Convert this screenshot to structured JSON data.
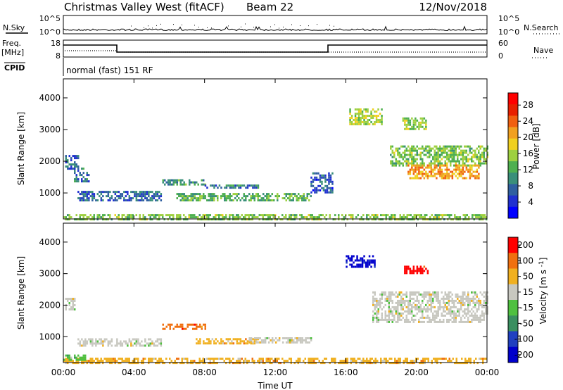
{
  "header": {
    "station": "Christmas Valley West (fitACF)",
    "beam": "Beam 22",
    "date": "12/Nov/2018"
  },
  "strips": {
    "nsky": {
      "label": "N.Sky",
      "ticks": [
        "10^5",
        "10^0"
      ]
    },
    "nsearch": {
      "label": "N.Search",
      "ticks": [
        "10^5",
        "10^0"
      ]
    },
    "freq": {
      "label_top": "Freq.",
      "label_unit": "[MHz]",
      "ticks": [
        "18",
        "8"
      ]
    },
    "nave": {
      "label": "Nave",
      "ticks": [
        "60",
        "0"
      ]
    },
    "cpid": {
      "label": "CPID",
      "value": "normal (fast) 151 RF"
    }
  },
  "chart_data": [
    {
      "type": "heatmap",
      "panel": "power",
      "ylabel": "Slant Range [km]",
      "yticks": [
        1000,
        2000,
        3000,
        4000
      ],
      "ylim": [
        180,
        4600
      ],
      "xlim": [
        0,
        24
      ],
      "colorbar": {
        "label": "Power [dB]",
        "ticks": [
          4,
          8,
          12,
          16,
          20,
          24,
          28
        ],
        "range": [
          0,
          31
        ],
        "colors": [
          "#0000ff",
          "#2030d0",
          "#2f5fa0",
          "#3a8f7a",
          "#4fb050",
          "#9ed040",
          "#f0d020",
          "#f0a020",
          "#f06010",
          "#e82000",
          "#ff0000"
        ]
      },
      "regions": [
        {
          "t": [
            0.0,
            24.0
          ],
          "r": [
            200,
            350
          ],
          "level": 14
        },
        {
          "t": [
            0.1,
            0.8
          ],
          "r": [
            1800,
            2200
          ],
          "level": 6
        },
        {
          "t": [
            0.6,
            1.4
          ],
          "r": [
            1400,
            1800
          ],
          "level": 7
        },
        {
          "t": [
            0.8,
            5.5
          ],
          "r": [
            800,
            1100
          ],
          "level": 6
        },
        {
          "t": [
            5.6,
            8.0
          ],
          "r": [
            1300,
            1450
          ],
          "level": 10
        },
        {
          "t": [
            6.4,
            14.0
          ],
          "r": [
            800,
            1000
          ],
          "level": 12
        },
        {
          "t": [
            8.0,
            11.0
          ],
          "r": [
            1200,
            1300
          ],
          "level": 8
        },
        {
          "t": [
            14.0,
            15.2
          ],
          "r": [
            1050,
            1700
          ],
          "level": 5
        },
        {
          "t": [
            16.2,
            18.0
          ],
          "r": [
            3200,
            3700
          ],
          "level": 16
        },
        {
          "t": [
            19.2,
            20.5
          ],
          "r": [
            3050,
            3400
          ],
          "level": 15
        },
        {
          "t": [
            18.5,
            24.0
          ],
          "r": [
            1900,
            2500
          ],
          "level": 14
        },
        {
          "t": [
            19.5,
            23.5
          ],
          "r": [
            1500,
            1950
          ],
          "level": 22
        }
      ]
    },
    {
      "type": "heatmap",
      "panel": "velocity",
      "ylabel": "Slant Range [km]",
      "yticks": [
        1000,
        2000,
        3000,
        4000
      ],
      "ylim": [
        180,
        4600
      ],
      "xlim": [
        0,
        24
      ],
      "xticks": [
        "00:00",
        "04:00",
        "08:00",
        "12:00",
        "16:00",
        "20:00",
        "00:00"
      ],
      "xlabel": "Time UT",
      "colorbar": {
        "label": "Velocity [m s^-1]",
        "ticks": [
          "200",
          "100",
          "50",
          "15",
          "-15",
          "-50",
          "-100",
          "-200"
        ],
        "colors": [
          "#0000cc",
          "#2040c0",
          "#3a8f60",
          "#4fc040",
          "#c8c8c0",
          "#f0b020",
          "#f07010",
          "#ff0000"
        ]
      },
      "regions": [
        {
          "t": [
            0.0,
            24.0
          ],
          "r": [
            200,
            380
          ],
          "level": 5
        },
        {
          "t": [
            0.0,
            1.2
          ],
          "r": [
            300,
            500
          ],
          "level": 3
        },
        {
          "t": [
            0.1,
            0.6
          ],
          "r": [
            1900,
            2250
          ],
          "level": 4
        },
        {
          "t": [
            0.8,
            5.5
          ],
          "r": [
            750,
            1000
          ],
          "level": 4
        },
        {
          "t": [
            5.6,
            8.0
          ],
          "r": [
            1280,
            1420
          ],
          "level": 6
        },
        {
          "t": [
            7.5,
            11.0
          ],
          "r": [
            820,
            1000
          ],
          "level": 5
        },
        {
          "t": [
            10.5,
            14.0
          ],
          "r": [
            850,
            1000
          ],
          "level": 4
        },
        {
          "t": [
            16.0,
            17.6
          ],
          "r": [
            3250,
            3650
          ],
          "level": 0
        },
        {
          "t": [
            19.3,
            20.6
          ],
          "r": [
            3050,
            3300
          ],
          "level": 7
        },
        {
          "t": [
            17.5,
            24.0
          ],
          "r": [
            1500,
            2450
          ],
          "level": 4
        }
      ]
    }
  ]
}
